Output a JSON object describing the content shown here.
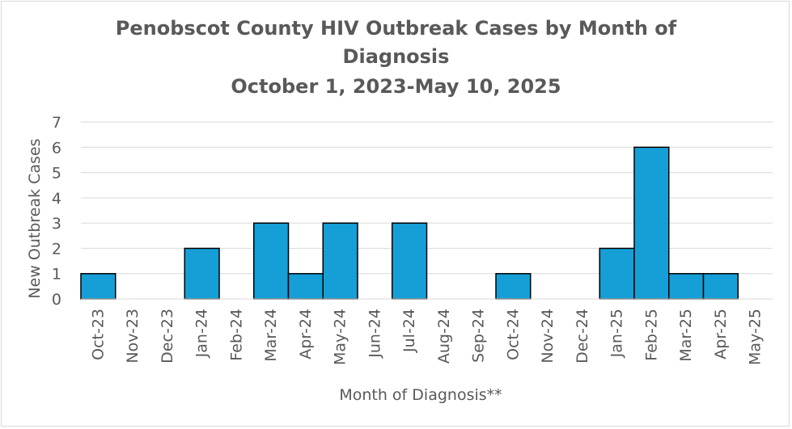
{
  "chart_data": {
    "type": "bar",
    "title": "Penobscot County HIV Outbreak Cases by Month of Diagnosis",
    "title_line1": "Penobscot County HIV Outbreak Cases by Month of",
    "title_line2": "Diagnosis",
    "subtitle": "October 1, 2023-May 10, 2025",
    "xlabel": "Month of Diagnosis**",
    "ylabel": "New Outbreak Cases",
    "ylim": [
      0,
      7
    ],
    "yticks": [
      0,
      1,
      2,
      3,
      4,
      5,
      6,
      7
    ],
    "grid": true,
    "legend": "none",
    "bar_color": "#159fd6",
    "categories": [
      "Oct-23",
      "Nov-23",
      "Dec-23",
      "Jan-24",
      "Feb-24",
      "Mar-24",
      "Apr-24",
      "May-24",
      "Jun-24",
      "Jul-24",
      "Aug-24",
      "Sep-24",
      "Oct-24",
      "Nov-24",
      "Dec-24",
      "Jan-25",
      "Feb-25",
      "Mar-25",
      "Apr-25",
      "May-25"
    ],
    "values": [
      1,
      0,
      0,
      2,
      0,
      3,
      1,
      3,
      0,
      3,
      0,
      0,
      1,
      0,
      0,
      2,
      6,
      1,
      1,
      0
    ]
  }
}
